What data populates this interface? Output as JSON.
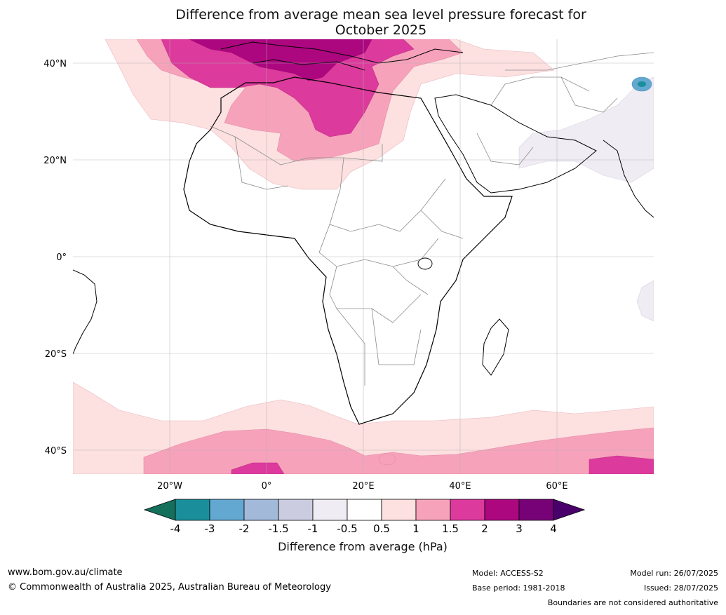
{
  "title": {
    "line1": "Difference from average mean sea level pressure forecast for",
    "line2": "October 2025"
  },
  "map": {
    "lat_labels": [
      "40°N",
      "20°N",
      "0°",
      "20°S",
      "40°S"
    ],
    "lon_labels": [
      "20°W",
      "0°",
      "20°E",
      "40°E",
      "60°E"
    ]
  },
  "legend": {
    "tick_labels": [
      "-4",
      "-3",
      "-2",
      "-1.5",
      "-1",
      "-0.5",
      "0.5",
      "1",
      "1.5",
      "2",
      "3",
      "4"
    ],
    "colors": [
      "#1a8f9b",
      "#63a8d1",
      "#a2b9da",
      "#cccce1",
      "#efecf3",
      "#ffffff",
      "#fde0e0",
      "#f7a2bb",
      "#dc3a9c",
      "#ad0780",
      "#770177"
    ],
    "under_color": "#14705a",
    "over_color": "#49006a",
    "label": "Difference from average (hPa)"
  },
  "footer": {
    "website": "www.bom.gov.au/climate",
    "copyright": "© Commonwealth of Australia 2025, Australian Bureau of Meteorology",
    "model": "Model: ACCESS-S2",
    "base_period": "Base period: 1981-2018",
    "model_run": "Model run: 26/07/2025",
    "issued": "Issued: 28/07/2025",
    "disclaimer": "Boundaries are not considered authoritative"
  }
}
